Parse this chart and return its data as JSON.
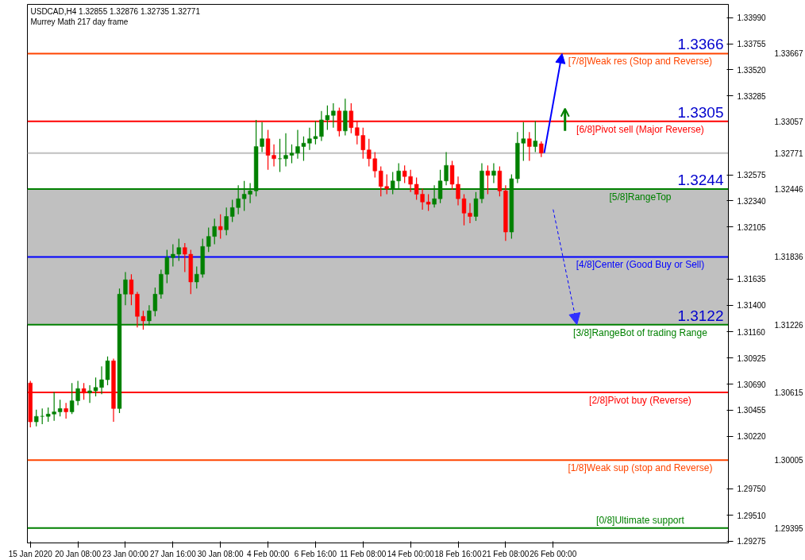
{
  "chart_data": {
    "type": "candlestick",
    "title": "USDCAD,H4  1.32855 1.32876 1.32735 1.32771",
    "subtitle": "Murrey Math 217 day frame",
    "categories": [
      "15 Jan 2020",
      null,
      null,
      null,
      null,
      null,
      null,
      null,
      "20 Jan 08:00",
      null,
      null,
      null,
      null,
      null,
      null,
      null,
      "23 Jan 00:00",
      null,
      null,
      null,
      null,
      null,
      null,
      null,
      "27 Jan 16:00",
      null,
      null,
      null,
      null,
      null,
      null,
      null,
      "30 Jan 08:00",
      null,
      null,
      null,
      null,
      null,
      null,
      null,
      "4 Feb 00:00",
      null,
      null,
      null,
      null,
      null,
      null,
      null,
      "6 Feb 16:00",
      null,
      null,
      null,
      null,
      null,
      null,
      null,
      "11 Feb 08:00",
      null,
      null,
      null,
      null,
      null,
      null,
      null,
      "14 Feb 00:00",
      null,
      null,
      null,
      null,
      null,
      null,
      null,
      "18 Feb 16:00",
      null,
      null,
      null,
      null,
      null,
      null,
      null,
      "21 Feb 08:00",
      null,
      null,
      null,
      null,
      null,
      null,
      null,
      "26 Feb 00:00",
      null,
      null,
      null,
      null,
      null,
      null,
      null,
      null,
      null,
      null,
      null,
      null,
      null,
      null,
      null,
      null,
      null,
      null,
      null,
      null,
      null,
      null,
      null,
      null,
      null,
      null,
      null,
      null,
      null
    ],
    "ohlc": [
      [
        1.307,
        1.3072,
        1.303,
        1.3035
      ],
      [
        1.3035,
        1.3046,
        1.3031,
        1.304
      ],
      [
        1.304,
        1.3047,
        1.3033,
        1.304
      ],
      [
        1.304,
        1.3048,
        1.3035,
        1.3042
      ],
      [
        1.3042,
        1.3062,
        1.3036,
        1.3044
      ],
      [
        1.3044,
        1.3055,
        1.304,
        1.3047
      ],
      [
        1.3047,
        1.3052,
        1.3038,
        1.3044
      ],
      [
        1.3044,
        1.307,
        1.3042,
        1.3054
      ],
      [
        1.3054,
        1.3072,
        1.305,
        1.3065
      ],
      [
        1.3065,
        1.307,
        1.3055,
        1.3061
      ],
      [
        1.3061,
        1.3068,
        1.3052,
        1.3063
      ],
      [
        1.3063,
        1.3075,
        1.3058,
        1.3066
      ],
      [
        1.3066,
        1.3085,
        1.306,
        1.3073
      ],
      [
        1.3073,
        1.3094,
        1.3068,
        1.309
      ],
      [
        1.309,
        1.3092,
        1.3035,
        1.3047
      ],
      [
        1.3047,
        1.3155,
        1.3043,
        1.315
      ],
      [
        1.315,
        1.317,
        1.314,
        1.3163
      ],
      [
        1.3163,
        1.3168,
        1.314,
        1.315
      ],
      [
        1.315,
        1.3152,
        1.312,
        1.313
      ],
      [
        1.313,
        1.3135,
        1.3118,
        1.3126
      ],
      [
        1.3126,
        1.314,
        1.3122,
        1.3135
      ],
      [
        1.3135,
        1.3156,
        1.313,
        1.315
      ],
      [
        1.315,
        1.3172,
        1.3146,
        1.3168
      ],
      [
        1.3168,
        1.319,
        1.316,
        1.3183
      ],
      [
        1.3183,
        1.3195,
        1.3175,
        1.3186
      ],
      [
        1.3186,
        1.32,
        1.318,
        1.3192
      ],
      [
        1.3192,
        1.3196,
        1.317,
        1.3186
      ],
      [
        1.3186,
        1.319,
        1.315,
        1.3161
      ],
      [
        1.3161,
        1.3175,
        1.3155,
        1.3168
      ],
      [
        1.3168,
        1.32,
        1.3165,
        1.3193
      ],
      [
        1.3193,
        1.321,
        1.3188,
        1.3202
      ],
      [
        1.3202,
        1.3218,
        1.3195,
        1.3211
      ],
      [
        1.3211,
        1.3222,
        1.32,
        1.3208
      ],
      [
        1.3208,
        1.3228,
        1.3203,
        1.322
      ],
      [
        1.322,
        1.3235,
        1.3215,
        1.3228
      ],
      [
        1.3228,
        1.3248,
        1.3222,
        1.3236
      ],
      [
        1.3236,
        1.3252,
        1.3225,
        1.324
      ],
      [
        1.324,
        1.325,
        1.3232,
        1.3243
      ],
      [
        1.3243,
        1.3307,
        1.3238,
        1.3283
      ],
      [
        1.3283,
        1.3305,
        1.3278,
        1.329
      ],
      [
        1.329,
        1.3298,
        1.3262,
        1.3275
      ],
      [
        1.3275,
        1.3285,
        1.3265,
        1.3272
      ],
      [
        1.3272,
        1.329,
        1.326,
        1.3272
      ],
      [
        1.3272,
        1.3295,
        1.3265,
        1.3275
      ],
      [
        1.3275,
        1.3285,
        1.3268,
        1.3277
      ],
      [
        1.3277,
        1.3298,
        1.3272,
        1.3283
      ],
      [
        1.3283,
        1.3292,
        1.327,
        1.3286
      ],
      [
        1.3286,
        1.33,
        1.328,
        1.329
      ],
      [
        1.329,
        1.3306,
        1.3285,
        1.3292
      ],
      [
        1.3292,
        1.3315,
        1.3288,
        1.3307
      ],
      [
        1.3307,
        1.332,
        1.3298,
        1.3311
      ],
      [
        1.3311,
        1.3322,
        1.33,
        1.3315
      ],
      [
        1.3315,
        1.3318,
        1.3292,
        1.3297
      ],
      [
        1.3297,
        1.3326,
        1.3293,
        1.3315
      ],
      [
        1.3315,
        1.3322,
        1.3295,
        1.33
      ],
      [
        1.33,
        1.3306,
        1.3285,
        1.3293
      ],
      [
        1.3293,
        1.33,
        1.3272,
        1.328
      ],
      [
        1.328,
        1.329,
        1.3265,
        1.3272
      ],
      [
        1.3272,
        1.3278,
        1.3255,
        1.3261
      ],
      [
        1.3261,
        1.3265,
        1.3238,
        1.3247
      ],
      [
        1.3247,
        1.3258,
        1.324,
        1.3245
      ],
      [
        1.3245,
        1.326,
        1.324,
        1.3252
      ],
      [
        1.3252,
        1.3268,
        1.3245,
        1.3261
      ],
      [
        1.3261,
        1.3266,
        1.325,
        1.3256
      ],
      [
        1.3256,
        1.3262,
        1.3242,
        1.3249
      ],
      [
        1.3249,
        1.3255,
        1.3235,
        1.324
      ],
      [
        1.324,
        1.3245,
        1.3226,
        1.3233
      ],
      [
        1.3233,
        1.324,
        1.3225,
        1.3231
      ],
      [
        1.3231,
        1.3248,
        1.3228,
        1.3236
      ],
      [
        1.3236,
        1.3262,
        1.3232,
        1.3252
      ],
      [
        1.3252,
        1.3278,
        1.3248,
        1.3266
      ],
      [
        1.3266,
        1.327,
        1.3244,
        1.3249
      ],
      [
        1.3249,
        1.3256,
        1.323,
        1.3236
      ],
      [
        1.3236,
        1.324,
        1.3212,
        1.3223
      ],
      [
        1.3223,
        1.3232,
        1.3214,
        1.322
      ],
      [
        1.322,
        1.3242,
        1.3216,
        1.3236
      ],
      [
        1.3236,
        1.3268,
        1.3232,
        1.3261
      ],
      [
        1.3261,
        1.3266,
        1.324,
        1.3257
      ],
      [
        1.3257,
        1.3268,
        1.325,
        1.3261
      ],
      [
        1.3261,
        1.3265,
        1.3238,
        1.3243
      ],
      [
        1.3243,
        1.3248,
        1.3198,
        1.3206
      ],
      [
        1.3206,
        1.3258,
        1.32,
        1.3254
      ],
      [
        1.3254,
        1.3296,
        1.325,
        1.3286
      ],
      [
        1.3286,
        1.3305,
        1.327,
        1.329
      ],
      [
        1.329,
        1.3296,
        1.327,
        1.3283
      ],
      [
        1.3283,
        1.3306,
        1.3278,
        1.3288
      ],
      [
        1.32855,
        1.32876,
        1.32735,
        1.32771
      ],
      null,
      null,
      null,
      null,
      null,
      null,
      null,
      null,
      null,
      null,
      null,
      null,
      null,
      null,
      null,
      null,
      null,
      null,
      null,
      null,
      null,
      null,
      null,
      null,
      null,
      null,
      null,
      null,
      null,
      null,
      null
    ],
    "colors": [
      "#ff0000",
      "#008000",
      "#008000",
      "#008000",
      "#008000",
      "#008000",
      "#ff0000",
      "#008000",
      "#008000",
      "#ff0000",
      "#008000",
      "#008000",
      "#008000",
      "#008000",
      "#ff0000",
      "#008000",
      "#008000",
      "#ff0000",
      "#ff0000",
      "#ff0000",
      "#008000",
      "#008000",
      "#008000",
      "#008000",
      "#008000",
      "#008000",
      "#ff0000",
      "#ff0000",
      "#008000",
      "#008000",
      "#008000",
      "#008000",
      "#ff0000",
      "#008000",
      "#008000",
      "#008000",
      "#008000",
      "#008000",
      "#008000",
      "#008000",
      "#ff0000",
      "#ff0000",
      "#008000",
      "#008000",
      "#008000",
      "#008000",
      "#008000",
      "#008000",
      "#008000",
      "#008000",
      "#008000",
      "#008000",
      "#ff0000",
      "#008000",
      "#ff0000",
      "#ff0000",
      "#ff0000",
      "#ff0000",
      "#ff0000",
      "#ff0000",
      "#ff0000",
      "#008000",
      "#008000",
      "#ff0000",
      "#ff0000",
      "#ff0000",
      "#ff0000",
      "#ff0000",
      "#008000",
      "#008000",
      "#008000",
      "#ff0000",
      "#ff0000",
      "#ff0000",
      "#ff0000",
      "#008000",
      "#008000",
      "#ff0000",
      "#008000",
      "#ff0000",
      "#ff0000",
      "#008000",
      "#008000",
      "#008000",
      "#ff0000",
      "#008000",
      "#ff0000",
      null,
      null,
      null,
      null,
      null,
      null,
      null,
      null,
      null,
      null,
      null,
      null,
      null,
      null,
      null,
      null,
      null,
      null,
      null,
      null,
      null,
      null,
      null,
      null,
      null,
      null,
      null,
      null,
      null,
      null,
      null
    ],
    "ylim": [
      1.2926,
      1.3411
    ],
    "yticks": [
      {
        "value": 1.3399,
        "label": "1.33990"
      },
      {
        "value": 1.33755,
        "label": "1.33755"
      },
      {
        "value": 1.3352,
        "label": "1.33520"
      },
      {
        "value": 1.33285,
        "label": "1.33285"
      },
      {
        "value": 1.32575,
        "label": "1.32575"
      },
      {
        "value": 1.3234,
        "label": "1.32340"
      },
      {
        "value": 1.32105,
        "label": "1.32105"
      },
      {
        "value": 1.31635,
        "label": "1.31635"
      },
      {
        "value": 1.314,
        "label": "1.31400"
      },
      {
        "value": 1.3116,
        "label": "1.31160"
      },
      {
        "value": 1.30925,
        "label": "1.30925"
      },
      {
        "value": 1.3069,
        "label": "1.30690"
      },
      {
        "value": 1.30455,
        "label": "1.30455"
      },
      {
        "value": 1.3022,
        "label": "1.30220"
      },
      {
        "value": 1.2975,
        "label": "1.29750"
      },
      {
        "value": 1.2951,
        "label": "1.29510"
      },
      {
        "value": 1.29275,
        "label": "1.29275"
      }
    ],
    "bands": [
      {
        "axis": "y",
        "from": 1.31226,
        "to": 1.32446,
        "color": "#c0c0c0"
      }
    ],
    "ref_lines": [
      {
        "axis": "y",
        "value": 1.33667,
        "label": "[7/8]Weak res (Stop and Reverse)",
        "color": "#ff4500"
      },
      {
        "axis": "y",
        "value": 1.33057,
        "label": "[6/8]Pivot sell (Major Reverse)",
        "color": "#ff0000"
      },
      {
        "axis": "y",
        "value": 1.32771,
        "color": "#c0c0c0"
      },
      {
        "axis": "y",
        "value": 1.32446,
        "label": "[5/8]RangeTop",
        "color": "#008000"
      },
      {
        "axis": "y",
        "value": 1.31836,
        "label": "[4/8]Center (Good Buy or Sell)",
        "color": "#0000ff"
      },
      {
        "axis": "y",
        "value": 1.31226,
        "label": "[3/8]RangeBot of trading Range",
        "color": "#008000"
      },
      {
        "axis": "y",
        "value": 1.30615,
        "label": "[2/8]Pivot buy (Reverse)",
        "color": "#ff0000"
      },
      {
        "axis": "y",
        "value": 1.30005,
        "label": "[1/8]Weak sup (stop and Reverse)",
        "color": "#ff4500"
      },
      {
        "axis": "y",
        "value": 1.29395,
        "label": "[0/8]Ultimate support",
        "color": "#008000"
      }
    ],
    "annotations": [
      {
        "text": "1.3366",
        "y": 1.33667
      },
      {
        "text": "1.3305",
        "y": 1.33057
      },
      {
        "text": "1.3244",
        "y": 1.32446
      },
      {
        "text": "1.3122",
        "y": 1.31226
      },
      "1.33667",
      "1.33057",
      "1.32771",
      "1.32446",
      "1.31836",
      "1.31226",
      "1.30615",
      "1.30005",
      "1.29395"
    ]
  }
}
